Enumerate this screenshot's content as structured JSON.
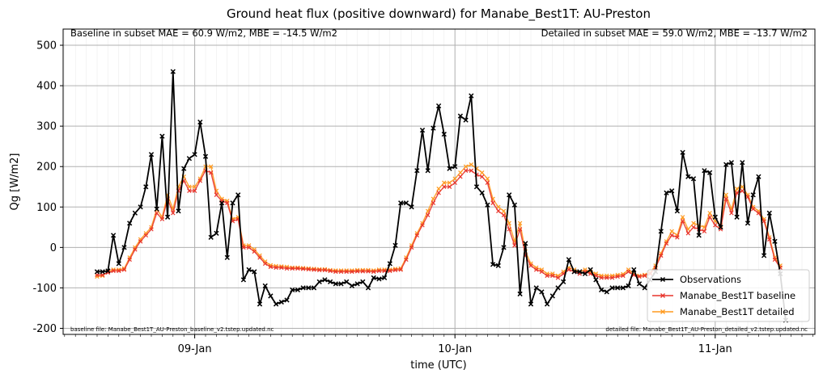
{
  "chart_data": {
    "type": "line",
    "title": "Ground heat flux (positive downward) for Manabe_Best1T: AU-Preston",
    "xlabel": "time (UTC)",
    "ylabel": "Qg [W/m2]",
    "ylim": [
      -215,
      540
    ],
    "yticks": [
      -200,
      -100,
      0,
      100,
      200,
      300,
      400,
      500
    ],
    "x_start": "2025-01-08T15:00",
    "x_step_minutes": 30,
    "x_tick_labels": [
      "09-Jan",
      "10-Jan",
      "11-Jan"
    ],
    "grid": true,
    "legend_location": "lower right",
    "annotations": {
      "top_left": "Baseline in subset MAE = 60.9 W/m2, MBE = -14.5 W/m2",
      "top_right": "Detailed in subset MAE = 59.0 W/m2, MBE = -13.7 W/m2",
      "bottom_left": "baseline file: Manabe_Best1T_AU-Preston_baseline_v2.tstep.updated.nc",
      "bottom_right": "detailed file: Manabe_Best1T_AU-Preston_detailed_v2.tstep.updated.nc"
    },
    "series": [
      {
        "name": "Observations",
        "color": "#000000",
        "values": [
          -60,
          -60,
          -58,
          30,
          -40,
          0,
          60,
          85,
          100,
          150,
          230,
          95,
          275,
          75,
          435,
          90,
          195,
          220,
          230,
          310,
          225,
          25,
          35,
          110,
          -25,
          110,
          130,
          -80,
          -55,
          -60,
          -140,
          -95,
          -120,
          -140,
          -135,
          -130,
          -105,
          -105,
          -100,
          -100,
          -100,
          -85,
          -80,
          -85,
          -90,
          -90,
          -85,
          -95,
          -90,
          -85,
          -100,
          -75,
          -78,
          -75,
          -40,
          5,
          110,
          110,
          100,
          190,
          290,
          190,
          295,
          350,
          280,
          195,
          200,
          325,
          315,
          375,
          150,
          135,
          105,
          -42,
          -45,
          0,
          130,
          105,
          -115,
          10,
          -140,
          -100,
          -110,
          -140,
          -120,
          -100,
          -85,
          -30,
          -60,
          -60,
          -65,
          -55,
          -80,
          -105,
          -110,
          -100,
          -100,
          -100,
          -95,
          -55,
          -90,
          -100,
          -80,
          -60,
          40,
          135,
          140,
          90,
          235,
          175,
          170,
          30,
          190,
          185,
          75,
          50,
          205,
          210,
          75,
          210,
          60,
          130,
          175,
          -20,
          85,
          15,
          -65,
          -180
        ]
      },
      {
        "name": "Manabe_Best1T baseline",
        "color": "#e8342b",
        "values": [
          -68,
          -68,
          -62,
          -58,
          -58,
          -55,
          -30,
          -5,
          15,
          30,
          45,
          85,
          70,
          120,
          85,
          140,
          165,
          140,
          140,
          165,
          190,
          185,
          130,
          115,
          110,
          65,
          70,
          0,
          0,
          -10,
          -25,
          -40,
          -48,
          -50,
          -50,
          -52,
          -52,
          -52,
          -53,
          -54,
          -55,
          -56,
          -56,
          -58,
          -60,
          -60,
          -60,
          -60,
          -59,
          -59,
          -59,
          -60,
          -58,
          -58,
          -58,
          -56,
          -55,
          -30,
          0,
          30,
          55,
          80,
          110,
          135,
          150,
          150,
          160,
          175,
          190,
          190,
          180,
          175,
          160,
          110,
          90,
          80,
          45,
          5,
          45,
          -20,
          -45,
          -55,
          -60,
          -70,
          -70,
          -75,
          -65,
          -55,
          -60,
          -65,
          -60,
          -65,
          -70,
          -75,
          -75,
          -75,
          -72,
          -70,
          -60,
          -68,
          -72,
          -70,
          -65,
          -50,
          -20,
          10,
          30,
          25,
          65,
          35,
          50,
          45,
          40,
          75,
          55,
          45,
          120,
          85,
          135,
          140,
          125,
          95,
          85,
          65,
          20,
          -30,
          -50
        ]
      },
      {
        "name": "Manabe_Best1T detailed",
        "color": "#ff9a1f",
        "values": [
          -72,
          -70,
          -60,
          -55,
          -55,
          -52,
          -25,
          0,
          20,
          35,
          50,
          95,
          75,
          130,
          95,
          150,
          175,
          150,
          150,
          170,
          200,
          200,
          140,
          120,
          115,
          70,
          75,
          5,
          5,
          -5,
          -20,
          -35,
          -44,
          -46,
          -47,
          -48,
          -50,
          -50,
          -51,
          -52,
          -53,
          -54,
          -54,
          -56,
          -57,
          -57,
          -57,
          -57,
          -56,
          -56,
          -56,
          -57,
          -55,
          -55,
          -55,
          -53,
          -52,
          -25,
          5,
          35,
          60,
          90,
          120,
          145,
          160,
          160,
          170,
          185,
          200,
          205,
          195,
          185,
          170,
          120,
          100,
          90,
          60,
          15,
          60,
          -10,
          -40,
          -50,
          -55,
          -65,
          -65,
          -70,
          -60,
          -50,
          -55,
          -60,
          -55,
          -60,
          -65,
          -70,
          -70,
          -70,
          -68,
          -66,
          -55,
          -65,
          -70,
          -68,
          -62,
          -45,
          -15,
          15,
          40,
          30,
          75,
          45,
          60,
          55,
          50,
          85,
          65,
          55,
          130,
          95,
          145,
          150,
          130,
          100,
          90,
          70,
          25,
          -25,
          -45
        ]
      }
    ]
  }
}
